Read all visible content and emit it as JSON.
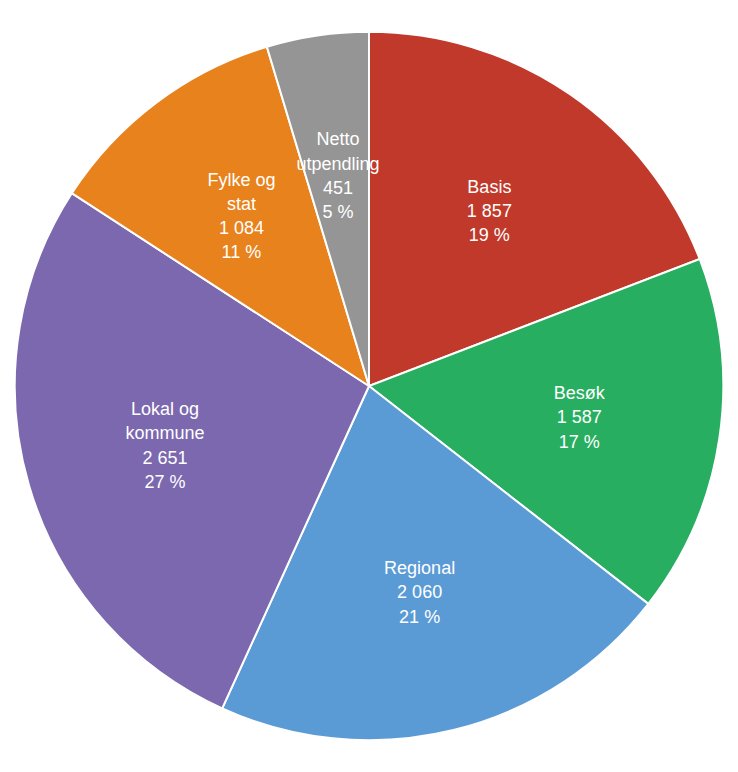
{
  "chart_data": {
    "type": "pie",
    "categories": [
      "Basis\n1 857\n19 %",
      "Besøk\n1 587\n17 %",
      "Regional\n2 060\n21 %",
      "Lokal og\nkommune\n2 651\n27 %",
      "Fylke og\nstat\n1 084\n11 %",
      "Netto\nutpendling\n451\n5 %"
    ],
    "values": [
      1857,
      1587,
      2060,
      2651,
      1084,
      451
    ],
    "colors": [
      "#c0392b",
      "#27ae60",
      "#5b9bd5",
      "#7b68ae",
      "#e8821c",
      "#959595"
    ]
  }
}
